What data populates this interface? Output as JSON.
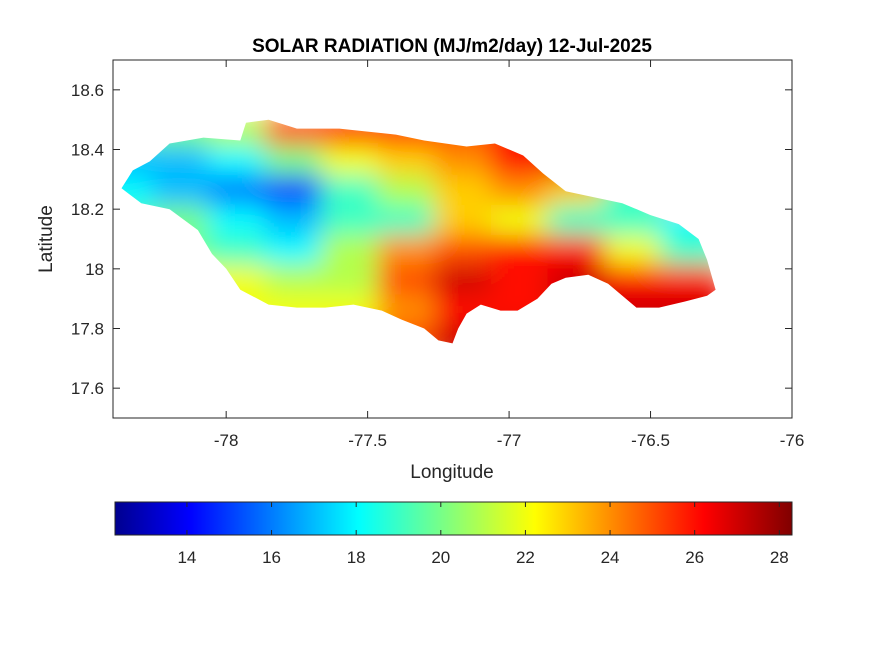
{
  "chart_data": {
    "type": "heatmap",
    "title": "SOLAR RADIATION (MJ/m2/day) 12-Jul-2025",
    "xlabel": "Longitude",
    "ylabel": "Latitude",
    "xlim": [
      -78.4,
      -76
    ],
    "ylim": [
      17.5,
      18.7
    ],
    "xticks": [
      -78,
      -77.5,
      -77,
      -76.5,
      -76
    ],
    "xtick_labels": [
      "-78",
      "-77.5",
      "-77",
      "-76.5",
      "-76"
    ],
    "yticks": [
      17.6,
      17.8,
      18,
      18.2,
      18.4,
      18.6
    ],
    "ytick_labels": [
      "17.6",
      "17.8",
      "18",
      "18.2",
      "18.4",
      "18.6"
    ],
    "grid": false,
    "colormap": "jet",
    "colorbar": {
      "orientation": "horizontal",
      "location": "bottom",
      "range": [
        12.3,
        28.3
      ],
      "ticks": [
        14,
        16,
        18,
        20,
        22,
        24,
        26,
        28
      ],
      "tick_labels": [
        "14",
        "16",
        "18",
        "20",
        "22",
        "24",
        "26",
        "28"
      ],
      "colors": [
        "#00008f",
        "#0000ff",
        "#00ffff",
        "#ffff00",
        "#ff0000",
        "#800000"
      ]
    },
    "outline": [
      [
        -78.37,
        18.27
      ],
      [
        -78.33,
        18.33
      ],
      [
        -78.27,
        18.36
      ],
      [
        -78.2,
        18.42
      ],
      [
        -78.08,
        18.44
      ],
      [
        -77.95,
        18.43
      ],
      [
        -77.93,
        18.49
      ],
      [
        -77.85,
        18.5
      ],
      [
        -77.75,
        18.47
      ],
      [
        -77.6,
        18.47
      ],
      [
        -77.5,
        18.46
      ],
      [
        -77.4,
        18.45
      ],
      [
        -77.3,
        18.43
      ],
      [
        -77.15,
        18.41
      ],
      [
        -77.05,
        18.42
      ],
      [
        -76.95,
        18.38
      ],
      [
        -76.88,
        18.32
      ],
      [
        -76.8,
        18.26
      ],
      [
        -76.7,
        18.24
      ],
      [
        -76.6,
        18.22
      ],
      [
        -76.5,
        18.18
      ],
      [
        -76.4,
        18.15
      ],
      [
        -76.33,
        18.1
      ],
      [
        -76.3,
        18.03
      ],
      [
        -76.27,
        17.93
      ],
      [
        -76.3,
        17.91
      ],
      [
        -76.38,
        17.89
      ],
      [
        -76.47,
        17.87
      ],
      [
        -76.55,
        17.87
      ],
      [
        -76.65,
        17.95
      ],
      [
        -76.72,
        17.98
      ],
      [
        -76.8,
        17.97
      ],
      [
        -76.85,
        17.95
      ],
      [
        -76.9,
        17.9
      ],
      [
        -76.97,
        17.86
      ],
      [
        -77.03,
        17.86
      ],
      [
        -77.1,
        17.88
      ],
      [
        -77.15,
        17.85
      ],
      [
        -77.18,
        17.8
      ],
      [
        -77.2,
        17.75
      ],
      [
        -77.25,
        17.76
      ],
      [
        -77.3,
        17.8
      ],
      [
        -77.38,
        17.83
      ],
      [
        -77.45,
        17.86
      ],
      [
        -77.55,
        17.88
      ],
      [
        -77.65,
        17.87
      ],
      [
        -77.75,
        17.87
      ],
      [
        -77.85,
        17.88
      ],
      [
        -77.95,
        17.93
      ],
      [
        -78.0,
        18.0
      ],
      [
        -78.05,
        18.05
      ],
      [
        -78.1,
        18.13
      ],
      [
        -78.2,
        18.2
      ],
      [
        -78.3,
        18.22
      ],
      [
        -78.37,
        18.27
      ]
    ],
    "grid_lon": [
      -78.35,
      -78.15,
      -77.95,
      -77.75,
      -77.55,
      -77.35,
      -77.15,
      -76.95,
      -76.75,
      -76.55,
      -76.35
    ],
    "grid_lat": [
      18.45,
      18.35,
      18.25,
      18.15,
      18.05,
      17.95,
      17.85,
      17.75
    ],
    "values": [
      [
        19,
        20,
        21,
        25,
        26,
        26,
        25,
        26,
        27,
        27,
        27
      ],
      [
        17,
        17,
        18,
        20,
        22,
        23,
        24,
        26,
        27,
        27,
        27
      ],
      [
        18,
        17,
        16,
        15,
        19,
        21,
        23,
        24,
        23,
        19,
        24
      ],
      [
        19,
        20,
        18,
        17,
        19,
        19,
        23,
        22,
        19,
        19,
        18
      ],
      [
        20,
        20,
        19,
        18,
        21,
        24,
        25,
        26,
        26,
        22,
        19
      ],
      [
        22,
        22,
        22,
        21,
        21,
        25,
        27,
        26,
        27,
        26,
        26
      ],
      [
        22,
        22,
        22,
        22,
        22,
        24,
        26,
        26,
        27,
        27,
        27
      ],
      [
        22,
        22,
        22,
        22,
        23,
        25,
        27,
        27,
        27,
        27,
        27
      ]
    ]
  }
}
